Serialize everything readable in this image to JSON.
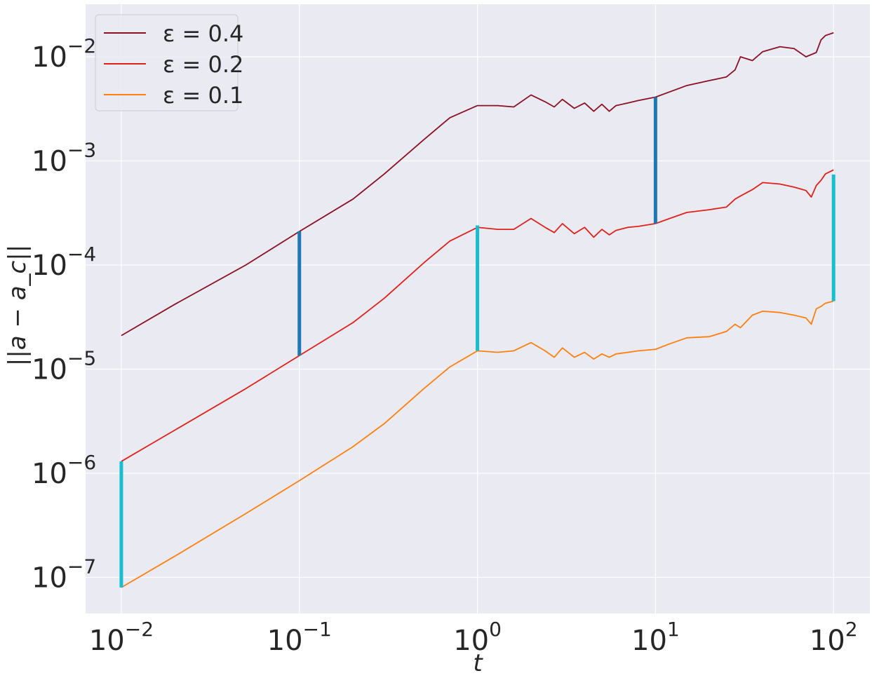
{
  "chart_data": {
    "type": "line",
    "x_scale": "log",
    "y_scale": "log",
    "xlim": [
      0.0063,
      160
    ],
    "ylim": [
      4.5e-08,
      0.032
    ],
    "xlabel": "t",
    "ylabel": "||a − a_c||",
    "grid": true,
    "legend_position": "top-left",
    "x_ticks": [
      {
        "value": 0.01,
        "base": "10",
        "exp": "−2"
      },
      {
        "value": 0.1,
        "base": "10",
        "exp": "−1"
      },
      {
        "value": 1,
        "base": "10",
        "exp": "0"
      },
      {
        "value": 10,
        "base": "10",
        "exp": "1"
      },
      {
        "value": 100,
        "base": "10",
        "exp": "2"
      }
    ],
    "y_ticks": [
      {
        "value": 1e-07,
        "base": "10",
        "exp": "−7"
      },
      {
        "value": 1e-06,
        "base": "10",
        "exp": "−6"
      },
      {
        "value": 1e-05,
        "base": "10",
        "exp": "−5"
      },
      {
        "value": 0.0001,
        "base": "10",
        "exp": "−4"
      },
      {
        "value": 0.001,
        "base": "10",
        "exp": "−3"
      },
      {
        "value": 0.01,
        "base": "10",
        "exp": "−2"
      }
    ],
    "series": [
      {
        "name": "ε = 0.4",
        "color": "#8b1023",
        "points": [
          [
            0.01,
            2.1e-05
          ],
          [
            0.02,
            4.2e-05
          ],
          [
            0.05,
            0.0001
          ],
          [
            0.1,
            0.00021
          ],
          [
            0.2,
            0.00043
          ],
          [
            0.3,
            0.00075
          ],
          [
            0.5,
            0.0016
          ],
          [
            0.7,
            0.0026
          ],
          [
            1.0,
            0.0034
          ],
          [
            1.3,
            0.0034
          ],
          [
            1.6,
            0.0033
          ],
          [
            2.0,
            0.0043
          ],
          [
            2.4,
            0.0037
          ],
          [
            2.7,
            0.0033
          ],
          [
            3.0,
            0.0039
          ],
          [
            3.5,
            0.0032
          ],
          [
            4.0,
            0.0036
          ],
          [
            4.5,
            0.003
          ],
          [
            5.0,
            0.0035
          ],
          [
            5.5,
            0.003
          ],
          [
            6.0,
            0.0034
          ],
          [
            7.0,
            0.0036
          ],
          [
            8.0,
            0.0038
          ],
          [
            10.0,
            0.0041
          ],
          [
            12.0,
            0.0046
          ],
          [
            15.0,
            0.0053
          ],
          [
            20.0,
            0.0059
          ],
          [
            25.0,
            0.0064
          ],
          [
            28.0,
            0.0075
          ],
          [
            30.0,
            0.01
          ],
          [
            35.0,
            0.0092
          ],
          [
            40.0,
            0.0112
          ],
          [
            50.0,
            0.0125
          ],
          [
            60.0,
            0.012
          ],
          [
            70.0,
            0.01
          ],
          [
            80.0,
            0.011
          ],
          [
            85.0,
            0.0145
          ],
          [
            90.0,
            0.016
          ],
          [
            100.0,
            0.017
          ]
        ]
      },
      {
        "name": "ε = 0.2",
        "color": "#e0201b",
        "points": [
          [
            0.01,
            1.3e-06
          ],
          [
            0.02,
            2.6e-06
          ],
          [
            0.05,
            6.5e-06
          ],
          [
            0.1,
            1.35e-05
          ],
          [
            0.2,
            2.8e-05
          ],
          [
            0.3,
            4.8e-05
          ],
          [
            0.5,
            0.000105
          ],
          [
            0.7,
            0.00017
          ],
          [
            1.0,
            0.00023
          ],
          [
            1.3,
            0.00022
          ],
          [
            1.6,
            0.00022
          ],
          [
            2.0,
            0.00028
          ],
          [
            2.4,
            0.00023
          ],
          [
            2.7,
            0.000205
          ],
          [
            3.0,
            0.00025
          ],
          [
            3.5,
            0.0002
          ],
          [
            4.0,
            0.00023
          ],
          [
            4.5,
            0.000185
          ],
          [
            5.0,
            0.00022
          ],
          [
            5.5,
            0.000195
          ],
          [
            6.0,
            0.000215
          ],
          [
            7.0,
            0.00023
          ],
          [
            8.0,
            0.000235
          ],
          [
            10.0,
            0.00025
          ],
          [
            12.0,
            0.00028
          ],
          [
            15.0,
            0.00032
          ],
          [
            20.0,
            0.00034
          ],
          [
            25.0,
            0.00036
          ],
          [
            28.0,
            0.00043
          ],
          [
            30.0,
            0.00046
          ],
          [
            35.0,
            0.00053
          ],
          [
            40.0,
            0.00062
          ],
          [
            50.0,
            0.0006
          ],
          [
            60.0,
            0.00056
          ],
          [
            70.0,
            0.00052
          ],
          [
            75.0,
            0.00045
          ],
          [
            80.0,
            0.00058
          ],
          [
            85.0,
            0.00065
          ],
          [
            90.0,
            0.00075
          ],
          [
            100.0,
            0.00082
          ]
        ]
      },
      {
        "name": "ε = 0.1",
        "color": "#ff7f0e",
        "points": [
          [
            0.01,
            8e-08
          ],
          [
            0.02,
            1.6e-07
          ],
          [
            0.05,
            4.1e-07
          ],
          [
            0.1,
            8.5e-07
          ],
          [
            0.2,
            1.8e-06
          ],
          [
            0.3,
            3e-06
          ],
          [
            0.5,
            6.5e-06
          ],
          [
            0.7,
            1.05e-05
          ],
          [
            1.0,
            1.5e-05
          ],
          [
            1.3,
            1.45e-05
          ],
          [
            1.6,
            1.5e-05
          ],
          [
            2.0,
            1.8e-05
          ],
          [
            2.4,
            1.5e-05
          ],
          [
            2.7,
            1.3e-05
          ],
          [
            3.0,
            1.6e-05
          ],
          [
            3.5,
            1.3e-05
          ],
          [
            4.0,
            1.45e-05
          ],
          [
            4.5,
            1.25e-05
          ],
          [
            5.0,
            1.4e-05
          ],
          [
            5.5,
            1.3e-05
          ],
          [
            6.0,
            1.4e-05
          ],
          [
            7.0,
            1.45e-05
          ],
          [
            8.0,
            1.5e-05
          ],
          [
            10.0,
            1.55e-05
          ],
          [
            12.0,
            1.75e-05
          ],
          [
            15.0,
            2e-05
          ],
          [
            20.0,
            2.05e-05
          ],
          [
            25.0,
            2.3e-05
          ],
          [
            28.0,
            2.7e-05
          ],
          [
            30.0,
            2.5e-05
          ],
          [
            35.0,
            3.3e-05
          ],
          [
            40.0,
            3.6e-05
          ],
          [
            50.0,
            3.5e-05
          ],
          [
            60.0,
            3.3e-05
          ],
          [
            70.0,
            3.1e-05
          ],
          [
            75.0,
            2.7e-05
          ],
          [
            80.0,
            3.8e-05
          ],
          [
            85.0,
            4e-05
          ],
          [
            90.0,
            4.3e-05
          ],
          [
            100.0,
            4.5e-05
          ]
        ]
      }
    ],
    "vertical_bars": [
      {
        "x": 0.01,
        "y_low": 8e-08,
        "y_high": 1.3e-06,
        "color": "#17becf"
      },
      {
        "x": 0.1,
        "y_low": 1.35e-05,
        "y_high": 0.00021,
        "color": "#1f77b4"
      },
      {
        "x": 1.0,
        "y_low": 1.5e-05,
        "y_high": 0.00024,
        "color": "#17becf"
      },
      {
        "x": 10.0,
        "y_low": 0.00025,
        "y_high": 0.0041,
        "color": "#1f77b4"
      },
      {
        "x": 100.0,
        "y_low": 4.5e-05,
        "y_high": 0.00074,
        "color": "#17becf"
      }
    ]
  }
}
